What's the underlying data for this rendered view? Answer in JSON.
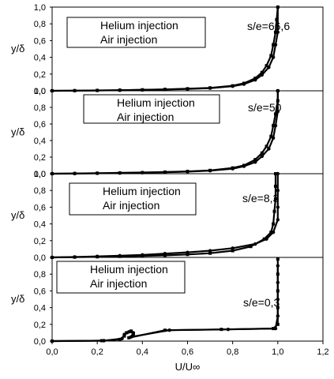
{
  "chart_data": [
    {
      "type": "scatter",
      "annotation": "s/e=66,6",
      "legend": [
        "Helium injection",
        "Air injection"
      ],
      "ylabel": "y/δ",
      "xlim": [
        0,
        1.2
      ],
      "ylim": [
        0,
        1.0
      ],
      "y_ticks": [
        "0,0",
        "0,2",
        "0,4",
        "0,6",
        "0,8",
        "1,0"
      ],
      "series": [
        {
          "name": "Helium injection",
          "marker": "square",
          "points": [
            [
              0.0,
              0.0
            ],
            [
              0.1,
              0.002
            ],
            [
              0.2,
              0.005
            ],
            [
              0.3,
              0.008
            ],
            [
              0.4,
              0.012
            ],
            [
              0.5,
              0.017
            ],
            [
              0.6,
              0.025
            ],
            [
              0.7,
              0.035
            ],
            [
              0.8,
              0.06
            ],
            [
              0.85,
              0.09
            ],
            [
              0.9,
              0.15
            ],
            [
              0.93,
              0.22
            ],
            [
              0.95,
              0.3
            ],
            [
              0.97,
              0.42
            ],
            [
              0.98,
              0.55
            ],
            [
              0.99,
              0.7
            ],
            [
              0.995,
              0.85
            ],
            [
              1.0,
              1.0
            ]
          ]
        },
        {
          "name": "Air injection",
          "marker": "circle",
          "points": [
            [
              0.0,
              0.0
            ],
            [
              0.1,
              0.002
            ],
            [
              0.2,
              0.004
            ],
            [
              0.3,
              0.007
            ],
            [
              0.4,
              0.01
            ],
            [
              0.5,
              0.015
            ],
            [
              0.6,
              0.022
            ],
            [
              0.7,
              0.032
            ],
            [
              0.8,
              0.055
            ],
            [
              0.85,
              0.08
            ],
            [
              0.9,
              0.13
            ],
            [
              0.93,
              0.19
            ],
            [
              0.96,
              0.28
            ],
            [
              0.98,
              0.4
            ],
            [
              0.99,
              0.55
            ],
            [
              1.0,
              0.7
            ],
            [
              1.0,
              1.0
            ]
          ]
        }
      ]
    },
    {
      "type": "scatter",
      "annotation": "s/e=50",
      "legend": [
        "Helium injection",
        "Air injection"
      ],
      "ylabel": "y/δ",
      "xlim": [
        0,
        1.2
      ],
      "ylim": [
        0,
        1.0
      ],
      "y_ticks": [
        "0,0",
        "0,2",
        "0,4",
        "0,6",
        "0,8",
        "1,0"
      ],
      "series": [
        {
          "name": "Helium injection",
          "marker": "square",
          "points": [
            [
              0.0,
              0.0
            ],
            [
              0.1,
              0.003
            ],
            [
              0.2,
              0.006
            ],
            [
              0.3,
              0.01
            ],
            [
              0.4,
              0.014
            ],
            [
              0.5,
              0.02
            ],
            [
              0.6,
              0.028
            ],
            [
              0.7,
              0.04
            ],
            [
              0.8,
              0.07
            ],
            [
              0.85,
              0.1
            ],
            [
              0.9,
              0.17
            ],
            [
              0.93,
              0.25
            ],
            [
              0.95,
              0.33
            ],
            [
              0.97,
              0.45
            ],
            [
              0.98,
              0.58
            ],
            [
              0.99,
              0.72
            ],
            [
              1.0,
              0.88
            ],
            [
              1.0,
              1.0
            ]
          ]
        },
        {
          "name": "Air injection",
          "marker": "circle",
          "points": [
            [
              0.0,
              0.0
            ],
            [
              0.1,
              0.002
            ],
            [
              0.2,
              0.005
            ],
            [
              0.3,
              0.008
            ],
            [
              0.4,
              0.012
            ],
            [
              0.5,
              0.018
            ],
            [
              0.6,
              0.025
            ],
            [
              0.7,
              0.036
            ],
            [
              0.8,
              0.06
            ],
            [
              0.85,
              0.09
            ],
            [
              0.9,
              0.14
            ],
            [
              0.93,
              0.21
            ],
            [
              0.96,
              0.3
            ],
            [
              0.98,
              0.43
            ],
            [
              0.99,
              0.58
            ],
            [
              1.0,
              0.75
            ],
            [
              1.0,
              1.0
            ]
          ]
        }
      ]
    },
    {
      "type": "scatter",
      "annotation": "s/e=8,3",
      "legend": [
        "Helium injection",
        "Air injection"
      ],
      "ylabel": "y/δ",
      "xlim": [
        0,
        1.2
      ],
      "ylim": [
        0,
        1.0
      ],
      "y_ticks": [
        "0,0",
        "0,2",
        "0,4",
        "0,6",
        "0,8",
        "1,0"
      ],
      "series": [
        {
          "name": "Helium injection",
          "marker": "square",
          "points": [
            [
              0.0,
              0.0
            ],
            [
              0.1,
              0.003
            ],
            [
              0.2,
              0.007
            ],
            [
              0.3,
              0.012
            ],
            [
              0.4,
              0.018
            ],
            [
              0.5,
              0.025
            ],
            [
              0.6,
              0.035
            ],
            [
              0.7,
              0.05
            ],
            [
              0.8,
              0.08
            ],
            [
              0.88,
              0.13
            ],
            [
              0.94,
              0.22
            ],
            [
              0.97,
              0.3
            ],
            [
              0.98,
              0.4
            ],
            [
              0.985,
              0.55
            ],
            [
              0.99,
              0.7
            ],
            [
              0.99,
              0.85
            ],
            [
              0.99,
              1.0
            ]
          ]
        },
        {
          "name": "Air injection",
          "marker": "circle",
          "points": [
            [
              0.0,
              0.0
            ],
            [
              0.1,
              0.005
            ],
            [
              0.2,
              0.012
            ],
            [
              0.3,
              0.02
            ],
            [
              0.4,
              0.03
            ],
            [
              0.5,
              0.045
            ],
            [
              0.6,
              0.06
            ],
            [
              0.7,
              0.08
            ],
            [
              0.8,
              0.11
            ],
            [
              0.9,
              0.16
            ],
            [
              0.95,
              0.22
            ],
            [
              0.98,
              0.3
            ],
            [
              1.0,
              0.45
            ],
            [
              1.0,
              0.6
            ],
            [
              1.0,
              0.8
            ],
            [
              1.0,
              1.0
            ]
          ]
        }
      ]
    },
    {
      "type": "scatter",
      "annotation": "s/e=0,3",
      "legend": [
        "Helium injection",
        "Air injection"
      ],
      "ylabel": "y/δ",
      "xlabel": "U/U∞",
      "xlim": [
        0,
        1.2
      ],
      "ylim": [
        0,
        1.0
      ],
      "x_ticks": [
        "0,0",
        "0,2",
        "0,4",
        "0,6",
        "0,8",
        "1,0",
        "1,2"
      ],
      "y_ticks": [
        "0,0",
        "0,2",
        "0,4",
        "0,6",
        "0,8"
      ],
      "series": [
        {
          "name": "Helium injection",
          "marker": "square",
          "points": [
            [
              0.0,
              0.0
            ],
            [
              0.22,
              0.005
            ],
            [
              0.3,
              0.02
            ],
            [
              0.32,
              0.06
            ],
            [
              0.33,
              0.1
            ],
            [
              0.35,
              0.12
            ],
            [
              0.36,
              0.08
            ],
            [
              0.34,
              0.04
            ],
            [
              0.5,
              0.13
            ],
            [
              0.75,
              0.14
            ],
            [
              0.98,
              0.15
            ],
            [
              1.0,
              0.2
            ],
            [
              1.0,
              0.4
            ],
            [
              1.0,
              0.6
            ],
            [
              1.0,
              0.8
            ],
            [
              1.0,
              0.98
            ]
          ]
        },
        {
          "name": "Air injection",
          "marker": "circle",
          "points": [
            [
              0.0,
              0.0
            ],
            [
              0.23,
              0.005
            ],
            [
              0.31,
              0.03
            ],
            [
              0.32,
              0.08
            ],
            [
              0.34,
              0.11
            ],
            [
              0.36,
              0.1
            ],
            [
              0.35,
              0.05
            ],
            [
              0.52,
              0.13
            ],
            [
              0.78,
              0.14
            ],
            [
              0.99,
              0.15
            ],
            [
              1.0,
              0.3
            ],
            [
              1.0,
              0.5
            ],
            [
              1.0,
              0.7
            ],
            [
              1.0,
              0.9
            ]
          ]
        }
      ]
    }
  ]
}
